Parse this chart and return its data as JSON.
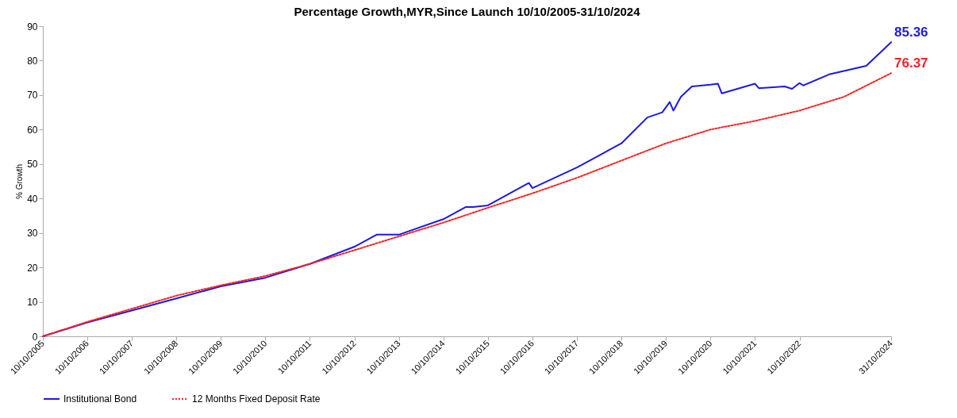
{
  "chart_data": {
    "type": "line",
    "title": "Percentage Growth,MYR,Since Launch 10/10/2005-31/10/2024",
    "ylabel": "% Growth",
    "ylim": [
      0,
      90
    ],
    "yticks": [
      0,
      10,
      20,
      30,
      40,
      50,
      60,
      70,
      80,
      90
    ],
    "xlim": [
      "2005-10-10",
      "2024-10-31"
    ],
    "xticks": [
      {
        "value": "2005-10-10",
        "label": "10/10/2005"
      },
      {
        "value": "2006-10-10",
        "label": "10/10/2006"
      },
      {
        "value": "2007-10-10",
        "label": "10/10/2007"
      },
      {
        "value": "2008-10-10",
        "label": "10/10/2008"
      },
      {
        "value": "2009-10-10",
        "label": "10/10/2009"
      },
      {
        "value": "2010-10-10",
        "label": "10/10/2010"
      },
      {
        "value": "2011-10-10",
        "label": "10/10/2011"
      },
      {
        "value": "2012-10-10",
        "label": "10/10/2012"
      },
      {
        "value": "2013-10-10",
        "label": "10/10/2013"
      },
      {
        "value": "2014-10-10",
        "label": "10/10/2014"
      },
      {
        "value": "2015-10-10",
        "label": "10/10/2015"
      },
      {
        "value": "2016-10-10",
        "label": "10/10/2016"
      },
      {
        "value": "2017-10-10",
        "label": "10/10/2017"
      },
      {
        "value": "2018-10-10",
        "label": "10/10/2018"
      },
      {
        "value": "2019-10-10",
        "label": "10/10/2019"
      },
      {
        "value": "2020-10-10",
        "label": "10/10/2020"
      },
      {
        "value": "2021-10-10",
        "label": "10/10/2021"
      },
      {
        "value": "2022-10-10",
        "label": "10/10/2022"
      },
      {
        "value": "2024-10-31",
        "label": "31/10/2024"
      }
    ],
    "grid": false,
    "legend": "bottom",
    "series": [
      {
        "name": "Institutional Bond",
        "color": "#1a1ae6",
        "line_style": "solid",
        "x": [
          "2005-10-10",
          "2006-10-10",
          "2007-10-10",
          "2008-10-10",
          "2009-10-10",
          "2010-10-10",
          "2011-10-10",
          "2012-10-10",
          "2013-04-10",
          "2013-10-10",
          "2014-10-10",
          "2015-04-10",
          "2015-06-10",
          "2015-10-10",
          "2016-09-10",
          "2016-10-10",
          "2017-10-10",
          "2018-10-10",
          "2019-05-10",
          "2019-09-10",
          "2019-11-10",
          "2019-12-10",
          "2020-02-10",
          "2020-05-10",
          "2020-10-10",
          "2020-12-10",
          "2021-01-10",
          "2021-10-10",
          "2021-11-10",
          "2022-06-10",
          "2022-08-10",
          "2022-10-10",
          "2022-11-10",
          "2023-06-10",
          "2024-04-10",
          "2024-10-31"
        ],
        "values": [
          0,
          4,
          7.5,
          11,
          14.5,
          17,
          21,
          26,
          29.5,
          29.5,
          34,
          37.5,
          37.5,
          38,
          44.5,
          43,
          49,
          56,
          63.5,
          65,
          68,
          65.5,
          69.5,
          72.5,
          73,
          73.3,
          70.5,
          73.3,
          72,
          72.5,
          71.8,
          73.5,
          72.8,
          76,
          78.5,
          85.36
        ],
        "value_labels": [
          null,
          null,
          null,
          null,
          null,
          null,
          null,
          null,
          null,
          null,
          null,
          null,
          null,
          null,
          null,
          null,
          null,
          null,
          null,
          null,
          null,
          null,
          null,
          null,
          null,
          null,
          null,
          null,
          null,
          null,
          null,
          null,
          null,
          null,
          null,
          "85.36"
        ]
      },
      {
        "name": "12 Months Fixed Deposit Rate",
        "color": "#ff2020",
        "line_style": "dotted",
        "x": [
          "2005-10-10",
          "2006-10-10",
          "2007-10-10",
          "2008-10-10",
          "2009-10-10",
          "2010-10-10",
          "2011-10-10",
          "2012-10-10",
          "2013-10-10",
          "2014-10-10",
          "2015-10-10",
          "2016-10-10",
          "2017-10-10",
          "2018-10-10",
          "2019-10-10",
          "2020-10-10",
          "2021-10-10",
          "2022-10-10",
          "2023-10-10",
          "2024-10-31"
        ],
        "values": [
          0,
          4.2,
          8,
          11.8,
          14.8,
          17.5,
          21,
          25,
          29,
          33,
          37.3,
          41.5,
          46,
          51,
          56,
          60,
          62.5,
          65.5,
          69.5,
          76.37
        ],
        "value_labels": [
          null,
          null,
          null,
          null,
          null,
          null,
          null,
          null,
          null,
          null,
          null,
          null,
          null,
          null,
          null,
          null,
          null,
          null,
          null,
          "76.37"
        ]
      }
    ]
  }
}
